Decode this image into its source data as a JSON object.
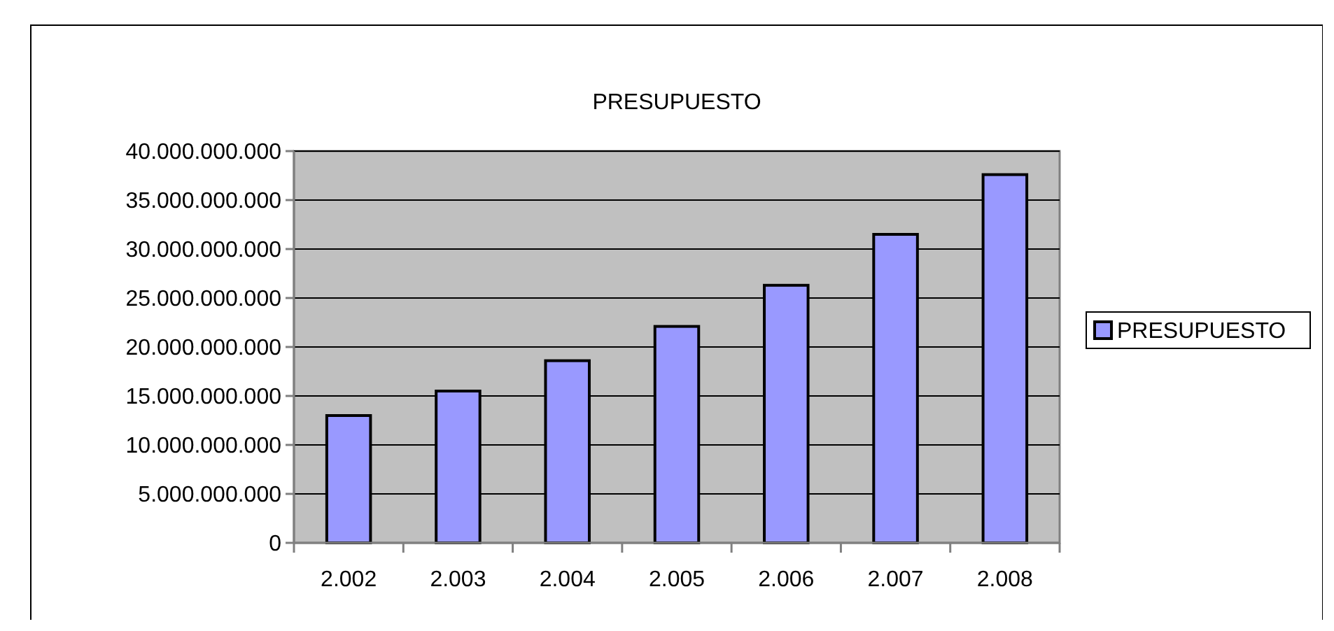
{
  "chart_data": {
    "type": "bar",
    "title": "PRESUPUESTO",
    "categories": [
      "2.002",
      "2.003",
      "2.004",
      "2.005",
      "2.006",
      "2.007",
      "2.008"
    ],
    "series": [
      {
        "name": "PRESUPUESTO",
        "color": "#9999ff",
        "values": [
          13000000000,
          15500000000,
          18600000000,
          22100000000,
          26300000000,
          31500000000,
          37600000000
        ]
      }
    ],
    "ylim": [
      0,
      40000000000
    ],
    "yticks": [
      0,
      {
        "value": 5000000000,
        "label": "5.000.000.000"
      },
      {
        "value": 10000000000,
        "label": "10.000.000.000"
      },
      {
        "value": 15000000000,
        "label": "15.000.000.000"
      },
      {
        "value": 20000000000,
        "label": "20.000.000.000"
      },
      {
        "value": 25000000000,
        "label": "25.000.000.000"
      },
      {
        "value": 30000000000,
        "label": "30.000.000.000"
      },
      {
        "value": 35000000000,
        "label": "35.000.000.000"
      },
      {
        "value": 40000000000,
        "label": "40.000.000.000"
      }
    ],
    "grid": "y",
    "legend": "right"
  }
}
